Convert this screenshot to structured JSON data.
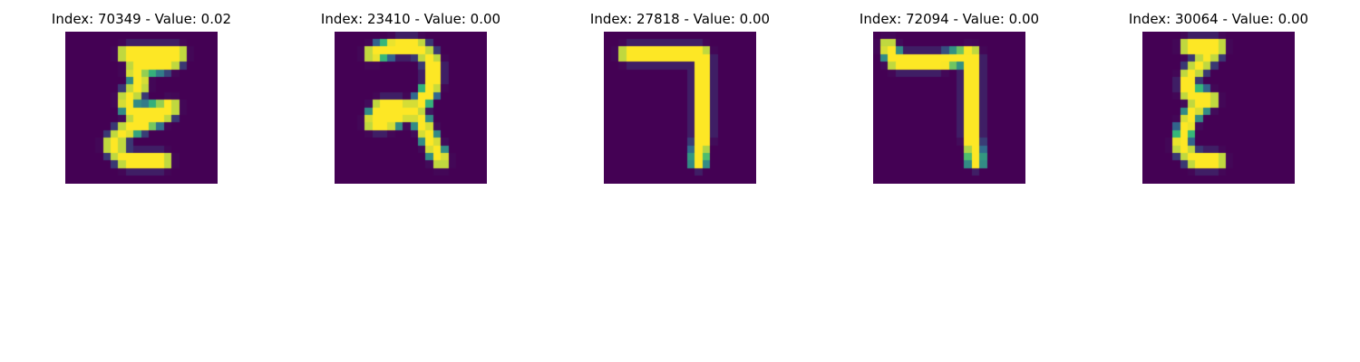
{
  "colors": {
    "background": "#440154",
    "stroke_core": "#fde725",
    "stroke_mid": "#35b779",
    "stroke_edge": "#31688e"
  },
  "panels": [
    {
      "title": "Index: 70349 - Value: 0.02",
      "glyph": "ε-like handwritten character",
      "strokes": [
        [
          [
            8,
            3
          ],
          [
            15,
            3
          ],
          [
            14,
            4
          ],
          [
            9,
            5
          ],
          [
            10,
            7
          ],
          [
            8,
            9
          ],
          [
            9,
            11
          ],
          [
            14,
            10
          ],
          [
            13,
            11
          ],
          [
            8,
            13
          ],
          [
            6,
            15
          ],
          [
            8,
            17
          ],
          [
            13,
            17
          ]
        ]
      ]
    },
    {
      "title": "Index: 23410 - Value: 0.00",
      "glyph": "2-like handwritten character",
      "strokes": [
        [
          [
            5,
            3
          ],
          [
            8,
            2
          ],
          [
            11,
            2
          ],
          [
            13,
            4
          ],
          [
            13,
            7
          ],
          [
            11,
            10
          ],
          [
            9,
            11
          ],
          [
            7,
            12
          ],
          [
            5,
            12
          ],
          [
            6,
            10
          ],
          [
            9,
            10
          ],
          [
            11,
            11
          ],
          [
            12,
            13
          ],
          [
            13,
            15
          ],
          [
            14,
            17
          ]
        ]
      ]
    },
    {
      "title": "Index: 27818 - Value: 0.00",
      "glyph": "7-like handwritten character",
      "strokes": [
        [
          [
            3,
            3
          ],
          [
            8,
            3
          ],
          [
            13,
            3
          ],
          [
            13,
            6
          ],
          [
            13,
            10
          ],
          [
            13,
            14
          ],
          [
            12.5,
            17
          ]
        ]
      ]
    },
    {
      "title": "Index: 72094 - Value: 0.00",
      "glyph": "7-like handwritten character",
      "strokes": [
        [
          [
            2,
            2
          ],
          [
            3,
            4
          ],
          [
            6,
            4
          ],
          [
            9,
            4
          ],
          [
            13,
            3
          ],
          [
            13,
            6
          ],
          [
            13,
            10
          ],
          [
            13,
            14
          ],
          [
            13.5,
            17
          ]
        ]
      ]
    },
    {
      "title": "Index: 30064 - Value: 0.00",
      "glyph": "ε-like handwritten character",
      "strokes": [
        [
          [
            6,
            2
          ],
          [
            10,
            2
          ],
          [
            8,
            4
          ],
          [
            6,
            6
          ],
          [
            6,
            8
          ],
          [
            9,
            9
          ],
          [
            7,
            10
          ],
          [
            6,
            12
          ],
          [
            5,
            15
          ],
          [
            7,
            17
          ],
          [
            10,
            17
          ]
        ]
      ]
    }
  ]
}
